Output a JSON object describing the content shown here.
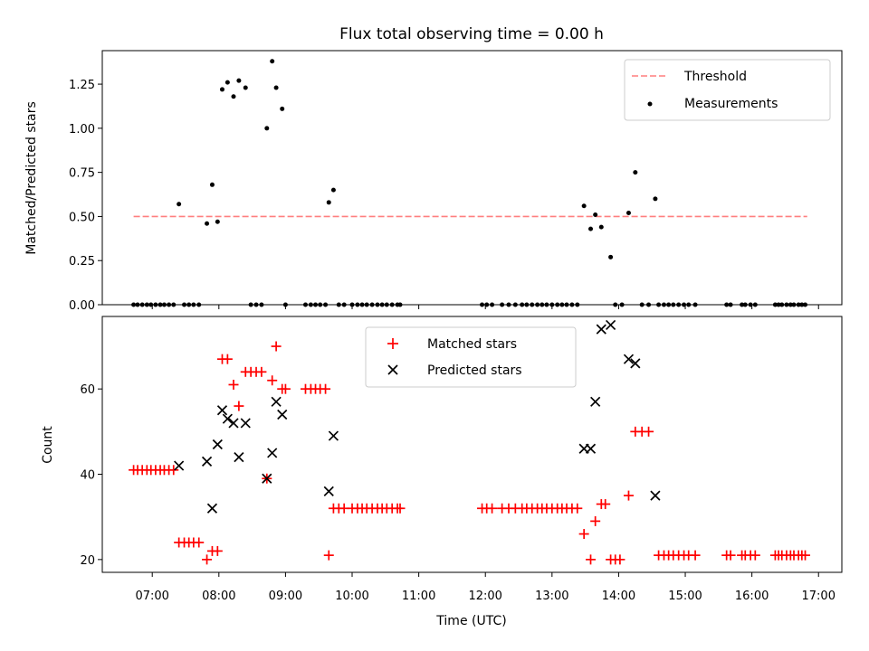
{
  "colors": {
    "threshold": "#ff7f7f",
    "measurements": "#000000",
    "matched": "#ff0000",
    "predicted": "#000000",
    "legend_border": "#cccccc"
  },
  "chart_data": [
    {
      "type": "scatter",
      "title": "Flux total observing time = 0.00 h",
      "xlabel": "",
      "ylabel": "Matched/Predicted stars",
      "x_unit": "hours UTC",
      "xlim": [
        6.25,
        17.35
      ],
      "ylim": [
        0,
        1.44
      ],
      "yticks": [
        0.0,
        0.25,
        0.5,
        0.75,
        1.0,
        1.25
      ],
      "ytick_labels": [
        "0.00",
        "0.25",
        "0.50",
        "0.75",
        "1.00",
        "1.25"
      ],
      "grid": false,
      "legend_position": "upper right",
      "series": [
        {
          "name": "Threshold",
          "style": "dashed-line",
          "x": [
            6.72,
            16.83
          ],
          "y": [
            0.5,
            0.5
          ]
        },
        {
          "name": "Measurements",
          "style": "dot",
          "x": [
            6.72,
            6.78,
            6.85,
            6.92,
            6.98,
            7.05,
            7.12,
            7.18,
            7.25,
            7.32,
            7.4,
            7.48,
            7.55,
            7.62,
            7.7,
            7.82,
            7.9,
            7.98,
            8.05,
            8.13,
            8.22,
            8.3,
            8.4,
            8.48,
            8.56,
            8.64,
            8.72,
            8.8,
            8.86,
            8.95,
            9.0,
            9.3,
            9.38,
            9.45,
            9.52,
            9.6,
            9.65,
            9.72,
            9.8,
            9.88,
            10.0,
            10.08,
            10.15,
            10.22,
            10.3,
            10.38,
            10.45,
            10.52,
            10.6,
            10.68,
            10.72,
            11.95,
            12.02,
            12.1,
            12.25,
            12.35,
            12.45,
            12.55,
            12.62,
            12.7,
            12.78,
            12.85,
            12.92,
            13.0,
            13.08,
            13.15,
            13.22,
            13.3,
            13.38,
            13.48,
            13.58,
            13.65,
            13.74,
            13.88,
            13.95,
            14.05,
            14.15,
            14.25,
            14.35,
            14.45,
            14.55,
            14.6,
            14.68,
            14.75,
            14.82,
            14.9,
            14.98,
            15.05,
            15.15,
            15.62,
            15.68,
            15.85,
            15.9,
            15.98,
            16.05,
            16.35,
            16.4,
            16.45,
            16.52,
            16.58,
            16.63,
            16.7,
            16.75,
            16.8
          ],
          "y": [
            0,
            0,
            0,
            0,
            0,
            0,
            0,
            0,
            0,
            0,
            0.57,
            0,
            0,
            0,
            0,
            0.46,
            0.68,
            0.47,
            1.22,
            1.26,
            1.18,
            1.27,
            1.23,
            0,
            0,
            0,
            1.0,
            1.38,
            1.23,
            1.11,
            0,
            0,
            0,
            0,
            0,
            0,
            0.58,
            0.65,
            0,
            0,
            0,
            0,
            0,
            0,
            0,
            0,
            0,
            0,
            0,
            0,
            0,
            0,
            0,
            0,
            0,
            0,
            0,
            0,
            0,
            0,
            0,
            0,
            0,
            0,
            0,
            0,
            0,
            0,
            0,
            0.56,
            0.43,
            0.51,
            0.44,
            0.27,
            0,
            0,
            0.52,
            0.75,
            0,
            0,
            0.6,
            0,
            0,
            0,
            0,
            0,
            0,
            0,
            0,
            0,
            0,
            0,
            0,
            0,
            0,
            0,
            0,
            0,
            0,
            0,
            0,
            0,
            0,
            0
          ]
        }
      ]
    },
    {
      "type": "scatter",
      "title": "",
      "xlabel": "Time (UTC)",
      "ylabel": "Count",
      "x_unit": "hours UTC",
      "xlim": [
        6.25,
        17.35
      ],
      "ylim": [
        17,
        77
      ],
      "yticks": [
        20,
        40,
        60
      ],
      "ytick_labels": [
        "20",
        "40",
        "60"
      ],
      "xticks": [
        7,
        8,
        9,
        10,
        11,
        12,
        13,
        14,
        15,
        16,
        17
      ],
      "xtick_labels": [
        "07:00",
        "08:00",
        "09:00",
        "10:00",
        "11:00",
        "12:00",
        "13:00",
        "14:00",
        "15:00",
        "16:00",
        "17:00"
      ],
      "grid": false,
      "legend_position": "upper center",
      "series": [
        {
          "name": "Matched stars",
          "style": "plus",
          "x": [
            6.72,
            6.78,
            6.85,
            6.92,
            6.98,
            7.05,
            7.12,
            7.18,
            7.25,
            7.32,
            7.4,
            7.48,
            7.55,
            7.62,
            7.7,
            7.82,
            7.9,
            7.98,
            8.05,
            8.13,
            8.22,
            8.3,
            8.4,
            8.48,
            8.56,
            8.64,
            8.72,
            8.8,
            8.86,
            8.95,
            9.0,
            9.3,
            9.38,
            9.45,
            9.52,
            9.6,
            9.65,
            9.72,
            9.8,
            9.88,
            10.0,
            10.08,
            10.15,
            10.22,
            10.3,
            10.38,
            10.45,
            10.52,
            10.6,
            10.68,
            10.72,
            11.95,
            12.02,
            12.1,
            12.25,
            12.35,
            12.45,
            12.55,
            12.62,
            12.7,
            12.78,
            12.85,
            12.92,
            13.0,
            13.08,
            13.15,
            13.22,
            13.3,
            13.38,
            13.48,
            13.58,
            13.65,
            13.74,
            13.8,
            13.88,
            13.95,
            14.02,
            14.15,
            14.25,
            14.35,
            14.45,
            14.6,
            14.68,
            14.75,
            14.82,
            14.9,
            14.98,
            15.05,
            15.15,
            15.62,
            15.68,
            15.85,
            15.9,
            15.98,
            16.05,
            16.35,
            16.4,
            16.45,
            16.52,
            16.58,
            16.63,
            16.7,
            16.75,
            16.8
          ],
          "y": [
            41,
            41,
            41,
            41,
            41,
            41,
            41,
            41,
            41,
            41,
            24,
            24,
            24,
            24,
            24,
            20,
            22,
            22,
            67,
            67,
            61,
            56,
            64,
            64,
            64,
            64,
            39,
            62,
            70,
            60,
            60,
            60,
            60,
            60,
            60,
            60,
            21,
            32,
            32,
            32,
            32,
            32,
            32,
            32,
            32,
            32,
            32,
            32,
            32,
            32,
            32,
            32,
            32,
            32,
            32,
            32,
            32,
            32,
            32,
            32,
            32,
            32,
            32,
            32,
            32,
            32,
            32,
            32,
            32,
            26,
            20,
            29,
            33,
            33,
            20,
            20,
            20,
            35,
            50,
            50,
            50,
            21,
            21,
            21,
            21,
            21,
            21,
            21,
            21,
            21,
            21,
            21,
            21,
            21,
            21,
            21,
            21,
            21,
            21,
            21,
            21,
            21,
            21,
            21
          ]
        },
        {
          "name": "Predicted stars",
          "style": "x",
          "x": [
            7.4,
            7.82,
            7.9,
            7.98,
            8.05,
            8.13,
            8.22,
            8.3,
            8.4,
            8.72,
            8.8,
            8.86,
            8.95,
            9.65,
            9.72,
            13.48,
            13.58,
            13.65,
            13.74,
            13.88,
            14.15,
            14.25,
            14.55
          ],
          "y": [
            42,
            43,
            32,
            47,
            55,
            53,
            52,
            44,
            52,
            39,
            45,
            57,
            54,
            36,
            49,
            46,
            46,
            57,
            74,
            75,
            67,
            66,
            35
          ]
        }
      ]
    }
  ]
}
